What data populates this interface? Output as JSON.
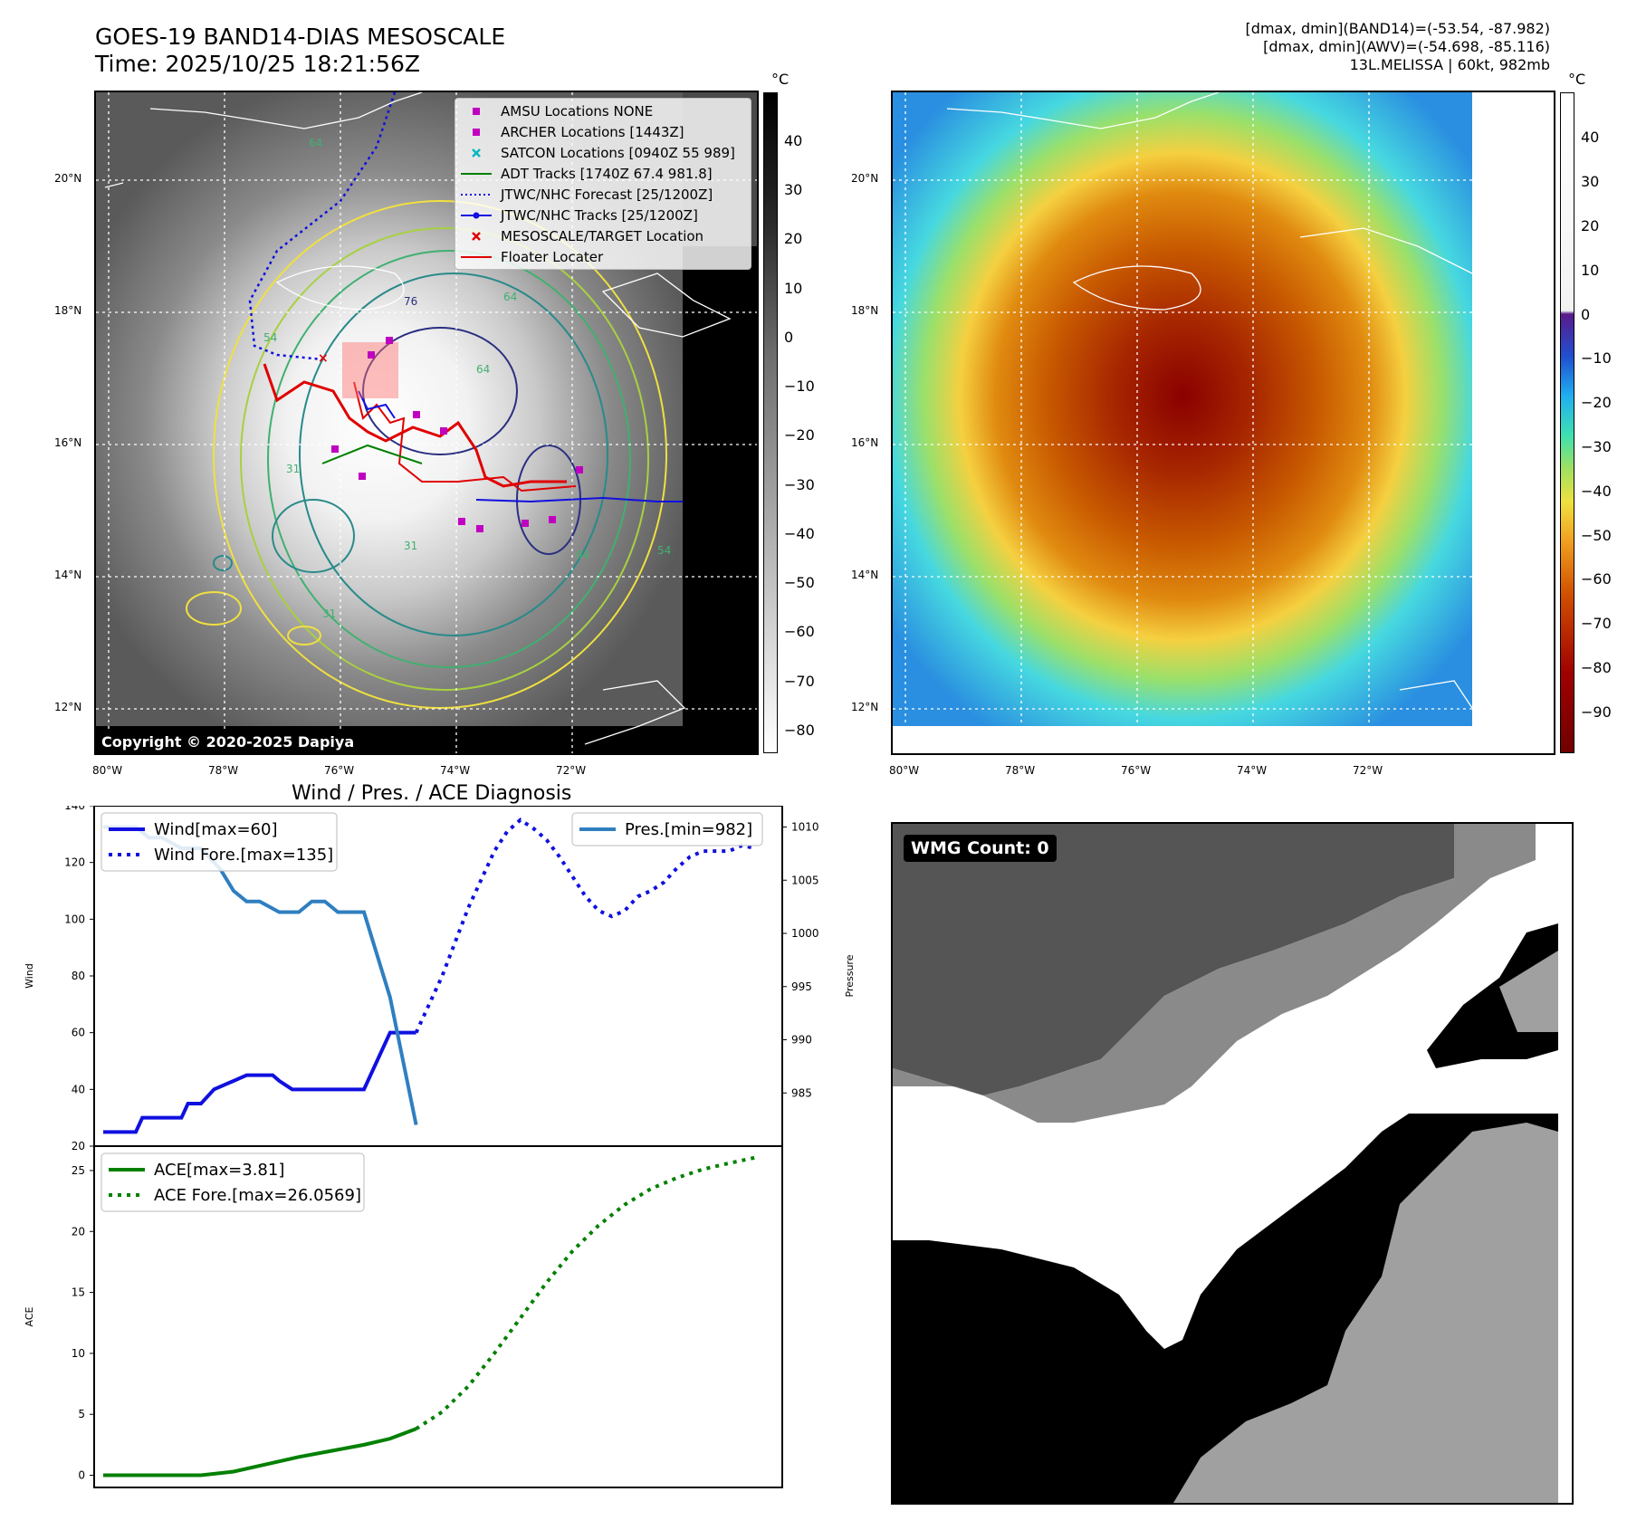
{
  "header": {
    "title_line1": "GOES-19 BAND14-DIAS MESOSCALE",
    "title_line2": "Time: 2025/10/25 18:21:56Z",
    "info_line1": "[dmax, dmin](BAND14)=(-53.54, -87.982)",
    "info_line2": "[dmax, dmin](AWV)=(-54.698, -85.116)",
    "info_line3": "13L.MELISSA | 60kt, 982mb"
  },
  "map": {
    "lat_labels": [
      "20°N",
      "18°N",
      "16°N",
      "14°N",
      "12°N"
    ],
    "lon_labels": [
      "80°W",
      "78°W",
      "76°W",
      "74°W",
      "72°W"
    ],
    "copyright": "Copyright © 2020-2025 Dapiya",
    "contour_labels": [
      "64",
      "76",
      "64",
      "64",
      "54",
      "31",
      "64",
      "31",
      "54",
      "31"
    ],
    "legend": [
      {
        "label": "AMSU Locations NONE",
        "marker": "square",
        "color": "#c000c0"
      },
      {
        "label": "ARCHER Locations [1443Z]",
        "marker": "square",
        "color": "#c000c0"
      },
      {
        "label": "SATCON Locations [0940Z 55 989]",
        "marker": "x",
        "color": "#00b8c0"
      },
      {
        "label": "ADT Tracks [1740Z 67.4 981.8]",
        "marker": "line",
        "color": "#008000"
      },
      {
        "label": "JTWC/NHC Forecast [25/1200Z]",
        "marker": "dotted",
        "color": "#1010e0"
      },
      {
        "label": "JTWC/NHC Tracks [25/1200Z]",
        "marker": "dotline",
        "color": "#1010e0"
      },
      {
        "label": "MESOSCALE/TARGET Location",
        "marker": "x",
        "color": "#e00000"
      },
      {
        "label": "Floater Locater",
        "marker": "line",
        "color": "#e00000"
      }
    ]
  },
  "colorbar_left": {
    "unit": "°C",
    "ticks": [
      "40",
      "30",
      "20",
      "10",
      "0",
      "−10",
      "−20",
      "−30",
      "−40",
      "−50",
      "−60",
      "−70",
      "−80"
    ]
  },
  "colorbar_right": {
    "unit": "°C",
    "ticks": [
      "40",
      "30",
      "20",
      "10",
      "0",
      "−10",
      "−20",
      "−30",
      "−40",
      "−50",
      "−60",
      "−70",
      "−80",
      "−90"
    ]
  },
  "wmg": {
    "label": "WMG Count: 0"
  },
  "chart_data": [
    {
      "type": "line",
      "title": "Wind / Pres. / ACE Diagnosis",
      "xlabel": "",
      "ylabel": "Wind",
      "ylim": [
        20,
        140
      ],
      "y2label": "Pressure",
      "y2lim": [
        980,
        1012
      ],
      "yticks": [
        "20",
        "40",
        "60",
        "80",
        "100",
        "120",
        "140"
      ],
      "y2ticks": [
        "985",
        "990",
        "995",
        "1000",
        "1005",
        "1010"
      ],
      "legend_left": [
        "Wind[max=60]",
        "Wind Fore.[max=135]"
      ],
      "legend_right": [
        "Pres.[min=982]"
      ],
      "series": [
        {
          "name": "Wind[max=60]",
          "axis": "left",
          "style": "solid",
          "color": "#1010e0",
          "x": [
            0,
            5,
            6,
            12,
            13,
            15,
            17,
            22,
            26,
            27,
            29,
            38,
            40,
            42,
            44,
            48
          ],
          "values": [
            25,
            25,
            30,
            30,
            35,
            35,
            40,
            45,
            45,
            43,
            40,
            40,
            40,
            50,
            60,
            60
          ]
        },
        {
          "name": "Wind Fore.[max=135]",
          "axis": "left",
          "style": "dotted",
          "color": "#1010e0",
          "x": [
            48,
            50,
            52,
            54,
            56,
            58,
            60,
            62,
            64,
            66,
            68,
            70,
            72,
            74,
            76,
            78,
            80,
            82,
            84,
            86,
            88,
            90,
            92,
            94,
            96,
            98,
            100
          ],
          "values": [
            60,
            70,
            80,
            92,
            104,
            114,
            124,
            131,
            135,
            132,
            128,
            122,
            115,
            108,
            103,
            101,
            103,
            108,
            110,
            113,
            118,
            122,
            124,
            124,
            124,
            126,
            125
          ]
        },
        {
          "name": "Pres.[min=982]",
          "axis": "right",
          "style": "solid",
          "color": "#2f7fc0",
          "x": [
            0,
            5,
            7,
            9,
            12,
            15,
            18,
            20,
            22,
            24,
            27,
            30,
            32,
            34,
            36,
            38,
            40,
            42,
            44,
            46,
            48
          ],
          "values": [
            1010,
            1010,
            1009,
            1009,
            1008,
            1008,
            1006,
            1004,
            1003,
            1003,
            1002,
            1002,
            1003,
            1003,
            1002,
            1002,
            1002,
            998,
            994,
            988,
            982
          ]
        }
      ]
    },
    {
      "type": "line",
      "title": "",
      "xlabel": "",
      "ylabel": "ACE",
      "ylim": [
        -1,
        27
      ],
      "yticks": [
        "0",
        "5",
        "10",
        "15",
        "20",
        "25"
      ],
      "legend": [
        "ACE[max=3.81]",
        "ACE Fore.[max=26.0569]"
      ],
      "series": [
        {
          "name": "ACE[max=3.81]",
          "style": "solid",
          "color": "#008000",
          "x": [
            0,
            5,
            10,
            15,
            20,
            25,
            30,
            35,
            40,
            44,
            48
          ],
          "values": [
            0,
            0,
            0,
            0,
            0.3,
            0.9,
            1.5,
            2.0,
            2.5,
            3.0,
            3.81
          ]
        },
        {
          "name": "ACE Fore.[max=26.0569]",
          "style": "dotted",
          "color": "#008000",
          "x": [
            48,
            52,
            56,
            60,
            64,
            68,
            72,
            76,
            80,
            84,
            88,
            92,
            96,
            100
          ],
          "values": [
            3.81,
            5.2,
            7.3,
            10.0,
            12.9,
            15.8,
            18.4,
            20.5,
            22.2,
            23.5,
            24.4,
            25.1,
            25.6,
            26.0569
          ]
        }
      ]
    }
  ]
}
